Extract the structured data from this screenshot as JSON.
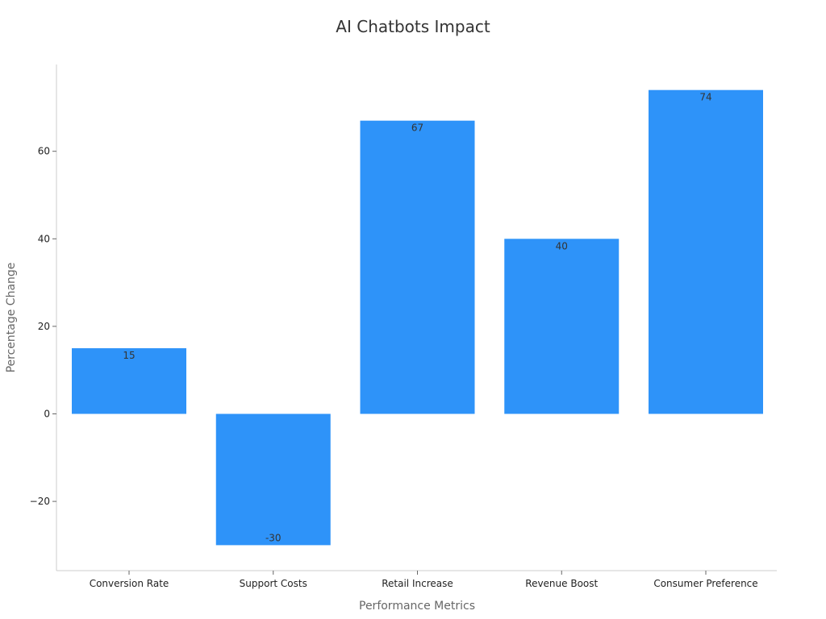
{
  "chart_data": {
    "type": "bar",
    "title": "AI Chatbots Impact",
    "xlabel": "Performance Metrics",
    "ylabel": "Percentage Change",
    "categories": [
      "Conversion Rate",
      "Support Costs",
      "Retail Increase",
      "Revenue Boost",
      "Consumer Preference"
    ],
    "values": [
      15,
      -30,
      67,
      40,
      74
    ],
    "data_labels": [
      "15",
      "-30",
      "67",
      "40",
      "74"
    ],
    "ylim": [
      -35,
      80
    ],
    "yticks": [
      -20,
      0,
      20,
      40,
      60
    ],
    "ytick_labels": [
      "−20",
      "0",
      "20",
      "40",
      "60"
    ],
    "bar_color": "#2e93f9",
    "grid": false,
    "legend": "none"
  }
}
